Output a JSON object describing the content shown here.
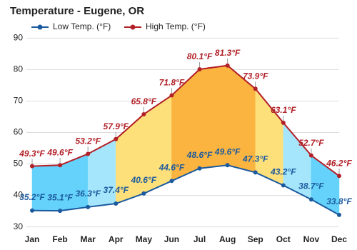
{
  "chart_data": {
    "type": "line",
    "title": "Temperature - Eugene, OR",
    "categories": [
      "Jan",
      "Feb",
      "Mar",
      "Apr",
      "May",
      "Jun",
      "Jul",
      "Aug",
      "Sep",
      "Oct",
      "Nov",
      "Dec"
    ],
    "series": [
      {
        "name": "Low Temp. (°F)",
        "color": "#1b5a9e",
        "values": [
          35.2,
          35.1,
          36.3,
          37.4,
          40.6,
          44.6,
          48.6,
          49.6,
          47.3,
          43.2,
          38.7,
          33.8
        ],
        "value_labels": [
          "35.2°F",
          "35.1°F",
          "36.3°F",
          "37.4°F",
          "40.6°F",
          "44.6°F",
          "48.6°F",
          "49.6°F",
          "47.3°F",
          "43.2°F",
          "38.7°F",
          "33.8°F"
        ]
      },
      {
        "name": "High Temp. (°F)",
        "color": "#b22028",
        "values": [
          49.3,
          49.6,
          53.2,
          57.9,
          65.8,
          71.8,
          80.1,
          81.3,
          73.9,
          63.1,
          52.7,
          46.2
        ],
        "value_labels": [
          "49.3°F",
          "49.6°F",
          "53.2°F",
          "57.9°F",
          "65.8°F",
          "71.8°F",
          "80.1°F",
          "81.3°F",
          "73.9°F",
          "63.1°F",
          "52.7°F",
          "46.2°F"
        ]
      }
    ],
    "band_colors": [
      "#64d2fa",
      "#64d2fa",
      "#a5e6fc",
      "#fde07a",
      "#fde07a",
      "#fbb43f",
      "#fbb43f",
      "#fbb43f",
      "#fde07a",
      "#a5e6fc",
      "#64d2fa"
    ],
    "ylim": [
      29,
      91
    ],
    "yticks": [
      30,
      40,
      50,
      60,
      70,
      80,
      90
    ],
    "grid": true
  }
}
